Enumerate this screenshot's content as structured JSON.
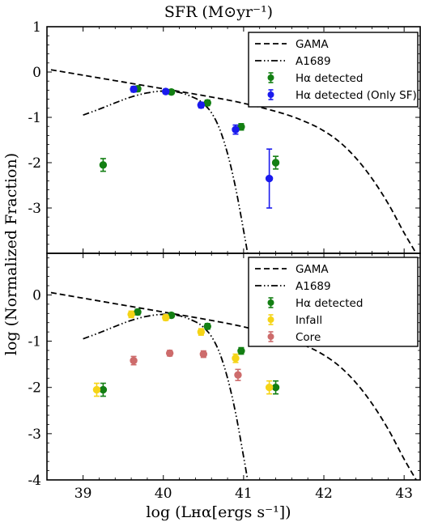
{
  "figure": {
    "top_title": "SFR (M⊙yr⁻¹)",
    "xlabel": "log (Lʜα[ergs s⁻¹])",
    "ylabel": "log (Normalized Fraction)"
  },
  "colors": {
    "green": "#137f13",
    "blue": "#1a1aee",
    "yellow": "#f5d416",
    "core": "#cd6b6b",
    "line": "#000000"
  },
  "chart_data": [
    {
      "type": "scatter",
      "panel": "top",
      "xlim": [
        38.55,
        43.2
      ],
      "ylim": [
        -4.0,
        1.0
      ],
      "xticks": [
        39,
        40,
        41,
        42,
        43
      ],
      "yticks": [
        1,
        0,
        -1,
        -2,
        -3
      ],
      "ytick_labels": [
        "1",
        "0",
        "-1",
        "-2",
        "-3"
      ],
      "legend_position": "top-right",
      "lines": [
        {
          "name": "GAMA",
          "style": "dashed",
          "x": [
            38.6,
            39.0,
            39.5,
            40.0,
            40.5,
            41.0,
            41.5,
            41.8,
            42.0,
            42.2,
            42.4,
            42.6,
            42.8,
            43.0,
            43.15
          ],
          "y": [
            0.05,
            -0.07,
            -0.22,
            -0.37,
            -0.52,
            -0.69,
            -0.92,
            -1.12,
            -1.3,
            -1.55,
            -1.9,
            -2.35,
            -2.9,
            -3.55,
            -4.0
          ]
        },
        {
          "name": "A1689",
          "style": "dashdot",
          "x": [
            39.0,
            39.2,
            39.4,
            39.6,
            39.8,
            40.0,
            40.2,
            40.4,
            40.5,
            40.6,
            40.7,
            40.8,
            40.9,
            41.0,
            41.05
          ],
          "y": [
            -0.95,
            -0.82,
            -0.68,
            -0.55,
            -0.46,
            -0.42,
            -0.45,
            -0.58,
            -0.7,
            -0.9,
            -1.25,
            -1.8,
            -2.55,
            -3.5,
            -4.0
          ]
        }
      ],
      "series": [
        {
          "name": "Hα detected",
          "color": "green",
          "x": [
            39.25,
            39.68,
            40.1,
            40.55,
            40.97,
            41.4
          ],
          "y": [
            -2.05,
            -0.37,
            -0.44,
            -0.68,
            -1.21,
            -2.0
          ],
          "yerr": [
            0.14,
            0.06,
            0.05,
            0.06,
            0.07,
            0.14
          ]
        },
        {
          "name": "Hα detected (Only SF)",
          "color": "blue",
          "x": [
            39.63,
            40.03,
            40.47,
            40.9,
            41.32
          ],
          "y": [
            -0.38,
            -0.43,
            -0.73,
            -1.27,
            -2.35
          ],
          "yerr": [
            0.06,
            0.05,
            0.06,
            0.1,
            0.65
          ]
        }
      ],
      "legend": [
        {
          "label": "GAMA",
          "kind": "dashed"
        },
        {
          "label": "A1689",
          "kind": "dashdot"
        },
        {
          "label": "Hα detected",
          "kind": "errpoint",
          "color": "green"
        },
        {
          "label": "Hα detected (Only SF)",
          "kind": "errpoint",
          "color": "blue"
        }
      ]
    },
    {
      "type": "scatter",
      "panel": "bottom",
      "xlim": [
        38.55,
        43.2
      ],
      "ylim": [
        -4.0,
        0.9
      ],
      "xticks": [
        39,
        40,
        41,
        42,
        43
      ],
      "yticks": [
        0,
        -1,
        -2,
        -3,
        -4
      ],
      "ytick_labels": [
        "0",
        "-1",
        "-2",
        "-3",
        "-4"
      ],
      "legend_position": "top-right",
      "lines": [
        {
          "name": "GAMA",
          "style": "dashed",
          "x": [
            38.6,
            39.0,
            39.5,
            40.0,
            40.5,
            41.0,
            41.5,
            41.8,
            42.0,
            42.2,
            42.4,
            42.6,
            42.8,
            43.0,
            43.15
          ],
          "y": [
            0.05,
            -0.07,
            -0.22,
            -0.37,
            -0.52,
            -0.69,
            -0.92,
            -1.12,
            -1.3,
            -1.55,
            -1.9,
            -2.35,
            -2.9,
            -3.55,
            -4.0
          ]
        },
        {
          "name": "A1689",
          "style": "dashdot",
          "x": [
            39.0,
            39.2,
            39.4,
            39.6,
            39.8,
            40.0,
            40.2,
            40.4,
            40.5,
            40.6,
            40.7,
            40.8,
            40.9,
            41.0,
            41.05
          ],
          "y": [
            -0.95,
            -0.82,
            -0.68,
            -0.55,
            -0.46,
            -0.42,
            -0.45,
            -0.58,
            -0.7,
            -0.9,
            -1.25,
            -1.8,
            -2.55,
            -3.5,
            -4.0
          ]
        }
      ],
      "series": [
        {
          "name": "Hα detected",
          "color": "green",
          "x": [
            39.25,
            39.68,
            40.1,
            40.55,
            40.97,
            41.4
          ],
          "y": [
            -2.05,
            -0.37,
            -0.44,
            -0.68,
            -1.21,
            -2.0
          ],
          "yerr": [
            0.14,
            0.06,
            0.05,
            0.06,
            0.07,
            0.14
          ]
        },
        {
          "name": "Infall",
          "color": "yellow",
          "x": [
            39.17,
            39.6,
            40.03,
            40.47,
            40.9,
            41.32
          ],
          "y": [
            -2.05,
            -0.42,
            -0.49,
            -0.8,
            -1.37,
            -2.0
          ],
          "yerr": [
            0.14,
            0.07,
            0.06,
            0.07,
            0.09,
            0.14
          ]
        },
        {
          "name": "Core",
          "color": "core",
          "x": [
            39.63,
            40.08,
            40.5,
            40.93
          ],
          "y": [
            -1.42,
            -1.26,
            -1.28,
            -1.73
          ],
          "yerr": [
            0.09,
            0.06,
            0.07,
            0.12
          ]
        }
      ],
      "legend": [
        {
          "label": "GAMA",
          "kind": "dashed"
        },
        {
          "label": "A1689",
          "kind": "dashdot"
        },
        {
          "label": "Hα detected",
          "kind": "errpoint",
          "color": "green"
        },
        {
          "label": "Infall",
          "kind": "errpoint",
          "color": "yellow"
        },
        {
          "label": "Core",
          "kind": "errpoint",
          "color": "core"
        }
      ]
    }
  ]
}
